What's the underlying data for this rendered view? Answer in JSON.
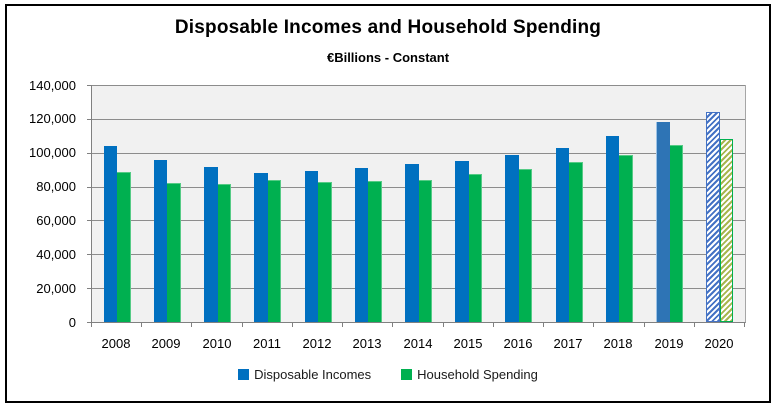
{
  "chart_data": {
    "type": "bar",
    "title": "Disposable Incomes and Household Spending",
    "subtitle": "€Billions - Constant",
    "categories": [
      "2008",
      "2009",
      "2010",
      "2011",
      "2012",
      "2013",
      "2014",
      "2015",
      "2016",
      "2017",
      "2018",
      "2019",
      "2020"
    ],
    "series": [
      {
        "name": "Disposable Incomes",
        "color": "#0070C0",
        "values": [
          104000,
          95500,
          91500,
          88000,
          89000,
          91000,
          93500,
          95000,
          98500,
          102500,
          110000,
          118000,
          124000
        ]
      },
      {
        "name": "Household Spending",
        "color": "#00B050",
        "values": [
          88500,
          82000,
          81500,
          84000,
          82500,
          83000,
          84000,
          87500,
          90500,
          94500,
          98500,
          104500,
          108000
        ]
      }
    ],
    "ylim": [
      0,
      140000
    ],
    "ytick_interval": 20000,
    "ytick_labels": [
      "140,000",
      "120,000",
      "100,000",
      "80,000",
      "60,000",
      "40,000",
      "20,000",
      "0"
    ],
    "xlabel": "",
    "ylabel": "",
    "grid": true,
    "legend_position": "bottom",
    "plot_background": "#F1F1F1",
    "gridline_color": "#8C8C8C",
    "bar_styles": {
      "2019": {
        "income_color": "#2E74B5"
      },
      "2020": {
        "style": "diagonal-hatched outline (forecast)",
        "income_outline": "#4472C4",
        "spending_outline": "#00B050",
        "spending_stripe": "#A8B64E"
      }
    }
  }
}
